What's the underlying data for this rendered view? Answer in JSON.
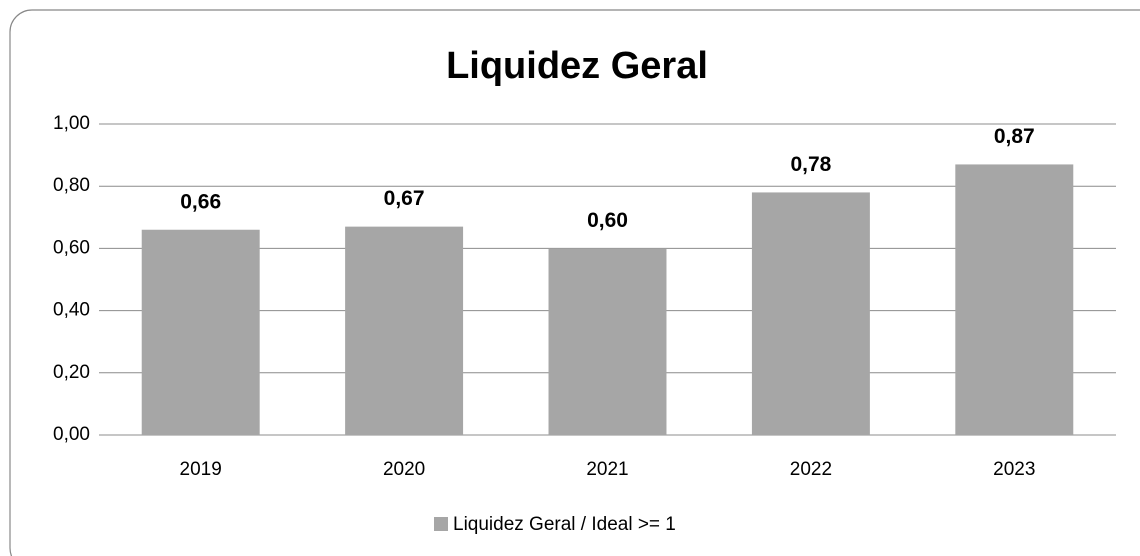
{
  "chart_data": {
    "type": "bar",
    "title": "Liquidez Geral",
    "categories": [
      "2019",
      "2020",
      "2021",
      "2022",
      "2023"
    ],
    "series": [
      {
        "name": "Liquidez Geral / Ideal >= 1",
        "color": "#a6a6a6",
        "values": [
          0.66,
          0.67,
          0.6,
          0.78,
          0.87
        ],
        "value_labels": [
          "0,66",
          "0,67",
          "0,60",
          "0,78",
          "0,87"
        ]
      }
    ],
    "ylim": [
      0,
      1
    ],
    "yticks": [
      {
        "value": 0,
        "label": "0,00"
      },
      {
        "value": 0.2,
        "label": "0,20"
      },
      {
        "value": 0.4,
        "label": "0,40"
      },
      {
        "value": 0.6,
        "label": "0,60"
      },
      {
        "value": 0.8,
        "label": "0,80"
      },
      {
        "value": 1,
        "label": "1,00"
      }
    ],
    "grid": true,
    "legend": "bottom"
  }
}
